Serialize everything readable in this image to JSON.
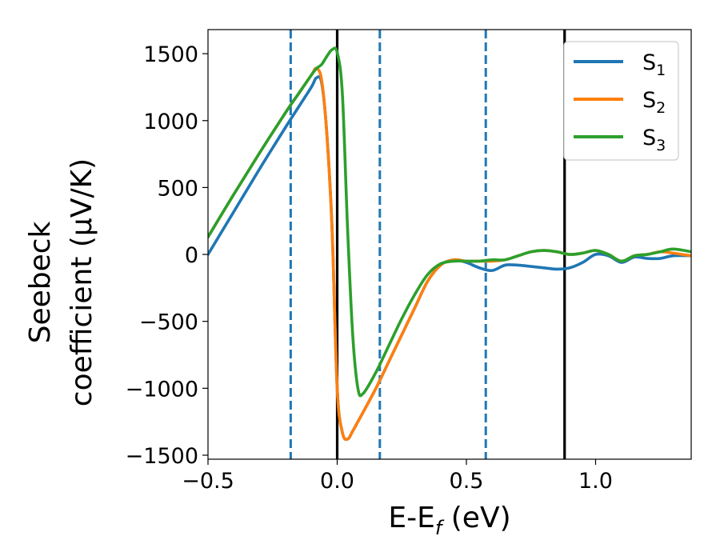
{
  "chart_data": {
    "type": "line",
    "xlabel": "E-E_f (eV)",
    "xlabel_parts": {
      "base": "E-E",
      "sub": "f",
      "unit": " (eV)"
    },
    "ylabel_line1": "Seebeck",
    "ylabel_line2": "coefficient  (μV/K)",
    "xlim": [
      -0.5,
      1.37
    ],
    "ylim": [
      -1530,
      1680
    ],
    "xticks": [
      -0.5,
      0.0,
      0.5,
      1.0
    ],
    "xtick_labels": [
      "−0.5",
      "0.0",
      "0.5",
      "1.0"
    ],
    "yticks": [
      -1500,
      -1000,
      -500,
      0,
      500,
      1000,
      1500
    ],
    "ytick_labels": [
      "−1500",
      "−1000",
      "−500",
      "0",
      "500",
      "1000",
      "1500"
    ],
    "grid": false,
    "legend_position": "top-right",
    "vlines": [
      {
        "x": -0.18,
        "style": "dashed",
        "color": "#1f77b4"
      },
      {
        "x": 0.165,
        "style": "dashed",
        "color": "#1f77b4"
      },
      {
        "x": 0.575,
        "style": "dashed",
        "color": "#1f77b4"
      },
      {
        "x": 0.0,
        "style": "solid",
        "color": "#000000"
      },
      {
        "x": 0.88,
        "style": "solid",
        "color": "#000000"
      }
    ],
    "series": [
      {
        "name": "S_1",
        "label_base": "S",
        "label_sub": "1",
        "color": "#1f77b4",
        "x": [
          -0.5,
          -0.4,
          -0.3,
          -0.2,
          -0.15,
          -0.1,
          -0.08,
          -0.06,
          -0.04,
          -0.02,
          0.0,
          0.02,
          0.04,
          0.06,
          0.08,
          0.1,
          0.15,
          0.2,
          0.25,
          0.3,
          0.35,
          0.4,
          0.45,
          0.5,
          0.55,
          0.6,
          0.65,
          0.7,
          0.75,
          0.8,
          0.85,
          0.9,
          0.95,
          1.0,
          1.05,
          1.1,
          1.15,
          1.2,
          1.25,
          1.3,
          1.37
        ],
        "y": [
          0,
          320,
          640,
          950,
          1100,
          1250,
          1320,
          1280,
          900,
          200,
          -1000,
          -1330,
          -1380,
          -1320,
          -1250,
          -1180,
          -1000,
          -800,
          -600,
          -400,
          -200,
          -80,
          -40,
          -60,
          -100,
          -120,
          -80,
          -80,
          -90,
          -100,
          -110,
          -100,
          -60,
          0,
          -10,
          -60,
          -20,
          -30,
          -30,
          -10,
          -10
        ]
      },
      {
        "name": "S_2",
        "label_base": "S",
        "label_sub": "2",
        "color": "#ff7f0e",
        "x": [
          -0.5,
          -0.4,
          -0.3,
          -0.2,
          -0.15,
          -0.1,
          -0.08,
          -0.06,
          -0.04,
          -0.02,
          0.0,
          0.02,
          0.04,
          0.06,
          0.08,
          0.1,
          0.15,
          0.2,
          0.25,
          0.3,
          0.35,
          0.4,
          0.45,
          0.5,
          0.55,
          0.6,
          0.65,
          0.7,
          0.75,
          0.8,
          0.85,
          0.9,
          0.95,
          1.0,
          1.05,
          1.1,
          1.15,
          1.2,
          1.25,
          1.3,
          1.37
        ],
        "y": [
          130,
          450,
          760,
          1060,
          1200,
          1340,
          1390,
          1300,
          900,
          200,
          -1000,
          -1330,
          -1380,
          -1320,
          -1250,
          -1180,
          -1000,
          -800,
          -600,
          -400,
          -200,
          -80,
          -40,
          -50,
          -50,
          -50,
          -40,
          -10,
          20,
          30,
          20,
          0,
          10,
          30,
          0,
          -50,
          -10,
          0,
          20,
          10,
          -10
        ]
      },
      {
        "name": "S_3",
        "label_base": "S",
        "label_sub": "3",
        "color": "#2ca02c",
        "x": [
          -0.5,
          -0.4,
          -0.3,
          -0.2,
          -0.15,
          -0.1,
          -0.08,
          -0.06,
          -0.04,
          -0.02,
          0.0,
          0.02,
          0.04,
          0.06,
          0.08,
          0.1,
          0.15,
          0.2,
          0.25,
          0.3,
          0.35,
          0.4,
          0.45,
          0.5,
          0.55,
          0.6,
          0.65,
          0.7,
          0.75,
          0.8,
          0.85,
          0.9,
          0.95,
          1.0,
          1.05,
          1.1,
          1.15,
          1.2,
          1.25,
          1.3,
          1.37
        ],
        "y": [
          130,
          450,
          760,
          1060,
          1200,
          1340,
          1390,
          1420,
          1480,
          1530,
          1510,
          1200,
          200,
          -600,
          -1000,
          -1040,
          -880,
          -680,
          -480,
          -300,
          -150,
          -70,
          -50,
          -50,
          -50,
          -40,
          -40,
          -10,
          20,
          30,
          20,
          0,
          10,
          30,
          0,
          -50,
          -10,
          0,
          20,
          40,
          20
        ]
      }
    ]
  }
}
